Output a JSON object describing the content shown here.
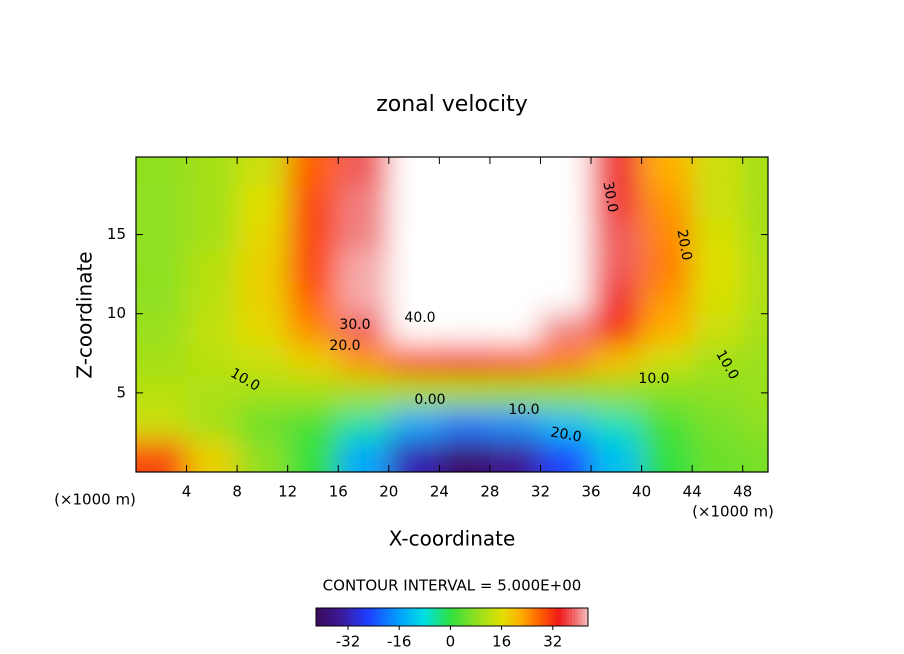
{
  "chart_data": {
    "type": "contour",
    "title": "zonal velocity",
    "x_label": "X-coordinate",
    "y_label": "Z-coordinate",
    "y_unit_label": "(×1000 m)",
    "x_unit_label": "(×1000 m)",
    "xlim": [
      0,
      50
    ],
    "xticks": [
      4,
      8,
      12,
      16,
      20,
      24,
      28,
      32,
      36,
      40,
      44,
      48
    ],
    "ylim": [
      0,
      19.9
    ],
    "yticks": [
      5,
      10,
      15
    ],
    "x": [
      2,
      6,
      10,
      14,
      18,
      22,
      26,
      30,
      34,
      38,
      42,
      46,
      50
    ],
    "z": [
      19,
      17,
      15,
      13,
      11,
      9,
      7,
      5,
      3,
      1
    ],
    "values": [
      [
        8,
        10,
        14,
        28,
        38,
        50,
        50,
        50,
        50,
        36,
        22,
        14,
        10
      ],
      [
        8,
        10,
        16,
        30,
        40,
        50,
        50,
        50,
        50,
        36,
        24,
        14,
        10
      ],
      [
        8,
        10,
        17,
        30,
        40,
        50,
        50,
        50,
        50,
        38,
        25,
        15,
        10
      ],
      [
        8,
        12,
        18,
        30,
        42,
        50,
        50,
        50,
        48,
        38,
        26,
        16,
        11
      ],
      [
        8,
        12,
        18,
        28,
        42,
        50,
        50,
        50,
        45,
        36,
        24,
        15,
        11
      ],
      [
        9,
        13,
        17,
        25,
        38,
        44,
        45,
        44,
        40,
        32,
        22,
        14,
        10
      ],
      [
        10,
        12,
        14,
        18,
        24,
        30,
        32,
        30,
        26,
        20,
        14,
        10,
        9
      ],
      [
        12,
        11,
        10,
        10,
        10,
        10,
        10,
        9,
        8,
        8,
        7,
        8,
        9
      ],
      [
        14,
        10,
        5,
        2,
        -5,
        -15,
        -20,
        -18,
        -12,
        -6,
        2,
        6,
        8
      ],
      [
        30,
        18,
        8,
        0,
        -15,
        -32,
        -40,
        -35,
        -25,
        -12,
        0,
        5,
        6
      ]
    ],
    "contour_labels": [
      "40.0",
      "30.0",
      "20.0",
      "10.0",
      "0.00",
      "10.0",
      "20.0",
      "30.0",
      "20.0",
      "10.0",
      "10.0"
    ],
    "contour_interval_text": "CONTOUR INTERVAL = 5.000E+00",
    "colorbar_lim": [
      -42,
      43
    ],
    "colorbar_ticks": [
      -32,
      -16,
      0,
      16,
      32
    ]
  }
}
